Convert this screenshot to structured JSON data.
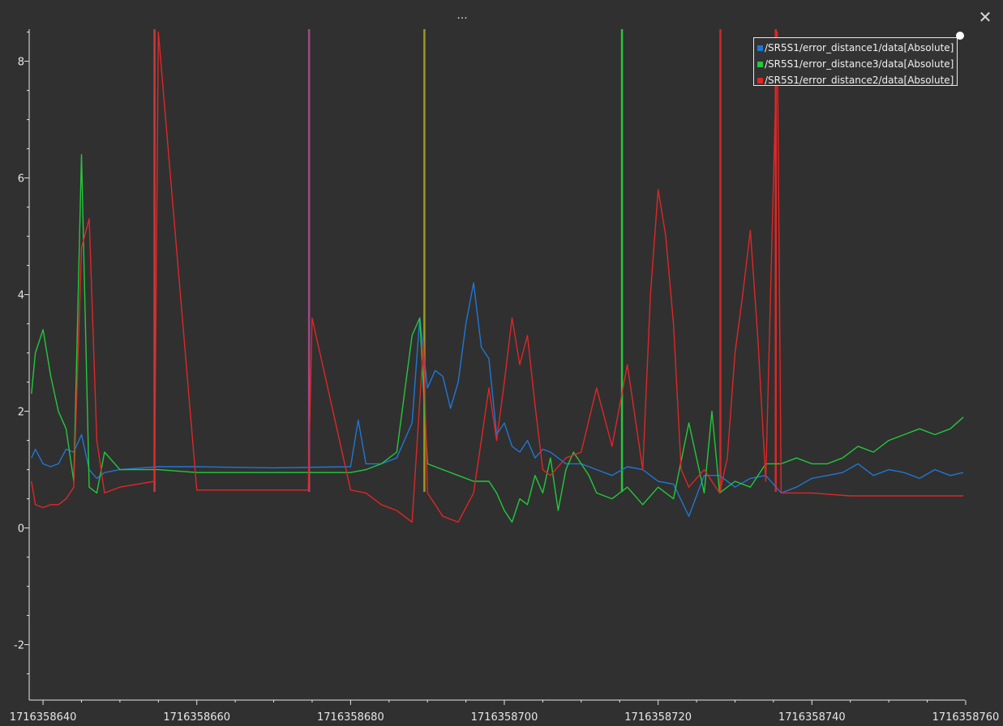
{
  "window": {
    "menu_label": "...",
    "close_label": "✕",
    "menu_icon": "more-horizontal-icon",
    "close_icon": "close-icon"
  },
  "colors": {
    "background": "#303030",
    "axis": "#e6e6e6",
    "series_blue": "#1f77d4",
    "series_green": "#22c93a",
    "series_red": "#e02626"
  },
  "chart_data": {
    "type": "line",
    "title": "",
    "xlabel": "",
    "ylabel": "",
    "grid": false,
    "legend_position": "top-right",
    "xlim": [
      1716358638.2,
      1716358759.9
    ],
    "ylim": [
      -2.95,
      8.55
    ],
    "x_ticks": [
      1716358640,
      1716358660,
      1716358680,
      1716358700,
      1716358720,
      1716358740,
      1716358760
    ],
    "x_tick_labels": [
      "1716358640",
      "1716358660",
      "1716358680",
      "1716358700",
      "1716358720",
      "1716358740",
      "1716358760"
    ],
    "y_ticks": [
      -2,
      0,
      2,
      4,
      6,
      8
    ],
    "y_tick_labels": [
      "-2",
      "0",
      "2",
      "4",
      "6",
      "8"
    ],
    "series": [
      {
        "name": "/SR5S1/error_distance1/data[Absolute]",
        "color": "#1f77d4",
        "x": [
          1716358638.5,
          1716358639,
          1716358640,
          1716358641,
          1716358642,
          1716358643,
          1716358644,
          1716358645,
          1716358646,
          1716358647,
          1716358648,
          1716358650,
          1716358655,
          1716358660,
          1716358670,
          1716358680,
          1716358681,
          1716358682,
          1716358684,
          1716358686,
          1716358688,
          1716358689,
          1716358690,
          1716358691,
          1716358692,
          1716358693,
          1716358694,
          1716358695,
          1716358696,
          1716358697,
          1716358698,
          1716358699,
          1716358700,
          1716358701,
          1716358702,
          1716358703,
          1716358704,
          1716358705,
          1716358706,
          1716358707,
          1716358708,
          1716358709,
          1716358710,
          1716358712,
          1716358714,
          1716358716,
          1716358718,
          1716358720,
          1716358722,
          1716358724,
          1716358726,
          1716358728,
          1716358730,
          1716358732,
          1716358734,
          1716358736,
          1716358738,
          1716358740,
          1716358742,
          1716358744,
          1716358746,
          1716358748,
          1716358750,
          1716358752,
          1716358754,
          1716358756,
          1716358758,
          1716358759.7
        ],
        "y": [
          1.2,
          1.35,
          1.1,
          1.05,
          1.1,
          1.35,
          1.3,
          1.6,
          1.0,
          0.85,
          0.95,
          1.0,
          1.05,
          1.05,
          1.03,
          1.05,
          1.85,
          1.1,
          1.1,
          1.2,
          1.8,
          3.6,
          2.4,
          2.7,
          2.6,
          2.05,
          2.5,
          3.5,
          4.2,
          3.1,
          2.9,
          1.6,
          1.8,
          1.4,
          1.3,
          1.5,
          1.2,
          1.35,
          1.3,
          1.2,
          1.1,
          1.1,
          1.1,
          1.0,
          0.9,
          1.05,
          1.0,
          0.8,
          0.75,
          0.2,
          0.9,
          0.9,
          0.7,
          0.85,
          0.9,
          0.6,
          0.7,
          0.85,
          0.9,
          0.95,
          1.1,
          0.9,
          1.0,
          0.95,
          0.85,
          1.0,
          0.9,
          0.95
        ]
      },
      {
        "name": "/SR5S1/error_distance3/data[Absolute]",
        "color": "#22c93a",
        "x": [
          1716358638.5,
          1716358639,
          1716358640,
          1716358641,
          1716358642,
          1716358643,
          1716358644,
          1716358645,
          1716358646,
          1716358647,
          1716358648,
          1716358650,
          1716358655,
          1716358660,
          1716358670,
          1716358680,
          1716358682,
          1716358684,
          1716358686,
          1716358688,
          1716358689,
          1716358690,
          1716358691,
          1716358692,
          1716358694,
          1716358696,
          1716358698,
          1716358699,
          1716358700,
          1716358701,
          1716358702,
          1716358703,
          1716358704,
          1716358705,
          1716358706,
          1716358707,
          1716358708,
          1716358709,
          1716358710,
          1716358711,
          1716358712,
          1716358714,
          1716358716,
          1716358718,
          1716358720,
          1716358722,
          1716358724,
          1716358726,
          1716358727,
          1716358728,
          1716358730,
          1716358732,
          1716358734,
          1716358736,
          1716358738,
          1716358740,
          1716358742,
          1716358744,
          1716358746,
          1716358748,
          1716358750,
          1716358752,
          1716358754,
          1716358756,
          1716358758,
          1716358759.7
        ],
        "y": [
          2.3,
          3.0,
          3.4,
          2.6,
          2.0,
          1.7,
          0.8,
          6.4,
          0.7,
          0.6,
          1.3,
          1.0,
          1.0,
          0.95,
          0.95,
          0.95,
          1.0,
          1.1,
          1.3,
          3.3,
          3.6,
          1.1,
          1.05,
          1.0,
          0.9,
          0.8,
          0.8,
          0.6,
          0.3,
          0.1,
          0.5,
          0.4,
          0.9,
          0.6,
          1.2,
          0.3,
          1.0,
          1.3,
          1.1,
          0.9,
          0.6,
          0.5,
          0.7,
          0.4,
          0.7,
          0.5,
          1.8,
          0.6,
          2.0,
          0.6,
          0.8,
          0.7,
          1.1,
          1.1,
          1.2,
          1.1,
          1.1,
          1.2,
          1.4,
          1.3,
          1.5,
          1.6,
          1.7,
          1.6,
          1.7,
          1.9
        ]
      },
      {
        "name": "/SR5S1/error_distance2/data[Absolute]",
        "color": "#e02626",
        "x": [
          1716358638.5,
          1716358639,
          1716358640,
          1716358641,
          1716358642,
          1716358643,
          1716358644,
          1716358645,
          1716358646,
          1716358647,
          1716358648,
          1716358650,
          1716358654.5,
          1716358655,
          1716358660,
          1716358670,
          1716358674.5,
          1716358675,
          1716358680,
          1716358682,
          1716358684,
          1716358686,
          1716358688,
          1716358689.5,
          1716358690,
          1716358691,
          1716358692,
          1716358694,
          1716358696,
          1716358697,
          1716358698,
          1716358699,
          1716358700,
          1716358701,
          1716358702,
          1716358703,
          1716358704,
          1716358705,
          1716358706,
          1716358708,
          1716358710,
          1716358712,
          1716358714,
          1716358716,
          1716358718,
          1716358719,
          1716358720,
          1716358721,
          1716358722,
          1716358723,
          1716358724,
          1716358726,
          1716358728,
          1716358729,
          1716358730,
          1716358731,
          1716358732,
          1716358733,
          1716358734,
          1716358735.5,
          1716358736,
          1716358740,
          1716358745,
          1716358750,
          1716358755,
          1716358759.7
        ],
        "y": [
          0.8,
          0.4,
          0.35,
          0.4,
          0.4,
          0.5,
          0.7,
          4.8,
          5.3,
          1.5,
          0.6,
          0.7,
          0.8,
          8.5,
          0.65,
          0.65,
          0.65,
          3.6,
          0.65,
          0.6,
          0.4,
          0.3,
          0.1,
          3.2,
          0.6,
          0.4,
          0.2,
          0.1,
          0.6,
          1.5,
          2.4,
          1.5,
          2.5,
          3.6,
          2.8,
          3.3,
          2.1,
          1.0,
          0.9,
          1.2,
          1.3,
          2.4,
          1.4,
          2.8,
          1.0,
          4.0,
          5.8,
          5.0,
          3.5,
          1.0,
          0.7,
          1.0,
          0.6,
          1.2,
          3.0,
          4.0,
          5.1,
          3.2,
          0.8,
          8.5,
          0.6,
          0.6,
          0.55,
          0.55,
          0.55,
          0.55
        ]
      }
    ],
    "vertical_markers": [
      {
        "x": 1716358654.5,
        "color": "#c83a3a"
      },
      {
        "x": 1716358674.6,
        "color": "#a04a88"
      },
      {
        "x": 1716358689.6,
        "color": "#9a9a20"
      },
      {
        "x": 1716358715.3,
        "color": "#22c93a"
      },
      {
        "x": 1716358728.1,
        "color": "#d02828"
      },
      {
        "x": 1716358735.3,
        "color": "#e02626"
      }
    ]
  }
}
